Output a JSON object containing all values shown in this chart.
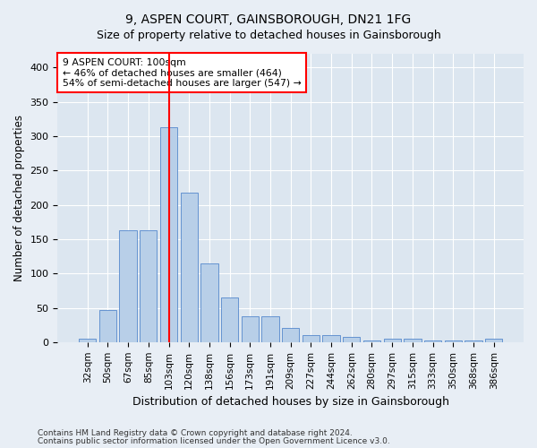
{
  "title": "9, ASPEN COURT, GAINSBOROUGH, DN21 1FG",
  "subtitle": "Size of property relative to detached houses in Gainsborough",
  "xlabel": "Distribution of detached houses by size in Gainsborough",
  "ylabel": "Number of detached properties",
  "categories": [
    "32sqm",
    "50sqm",
    "67sqm",
    "85sqm",
    "103sqm",
    "120sqm",
    "138sqm",
    "156sqm",
    "173sqm",
    "191sqm",
    "209sqm",
    "227sqm",
    "244sqm",
    "262sqm",
    "280sqm",
    "297sqm",
    "315sqm",
    "333sqm",
    "350sqm",
    "368sqm",
    "386sqm"
  ],
  "values": [
    5,
    47,
    163,
    163,
    313,
    218,
    115,
    65,
    37,
    37,
    20,
    10,
    10,
    7,
    3,
    5,
    5,
    2,
    2,
    3,
    5
  ],
  "bar_color": "#b8cfe8",
  "bar_edge_color": "#5588cc",
  "vline_bar_index": 4,
  "vline_color": "red",
  "annotation_text": "9 ASPEN COURT: 100sqm\n← 46% of detached houses are smaller (464)\n54% of semi-detached houses are larger (547) →",
  "annotation_box_color": "white",
  "annotation_box_edge_color": "red",
  "footnote1": "Contains HM Land Registry data © Crown copyright and database right 2024.",
  "footnote2": "Contains public sector information licensed under the Open Government Licence v3.0.",
  "ylim": [
    0,
    420
  ],
  "yticks": [
    0,
    50,
    100,
    150,
    200,
    250,
    300,
    350,
    400
  ],
  "bg_color": "#e8eef5",
  "plot_bg_color": "#dce6f0",
  "title_fontsize": 10,
  "subtitle_fontsize": 9
}
